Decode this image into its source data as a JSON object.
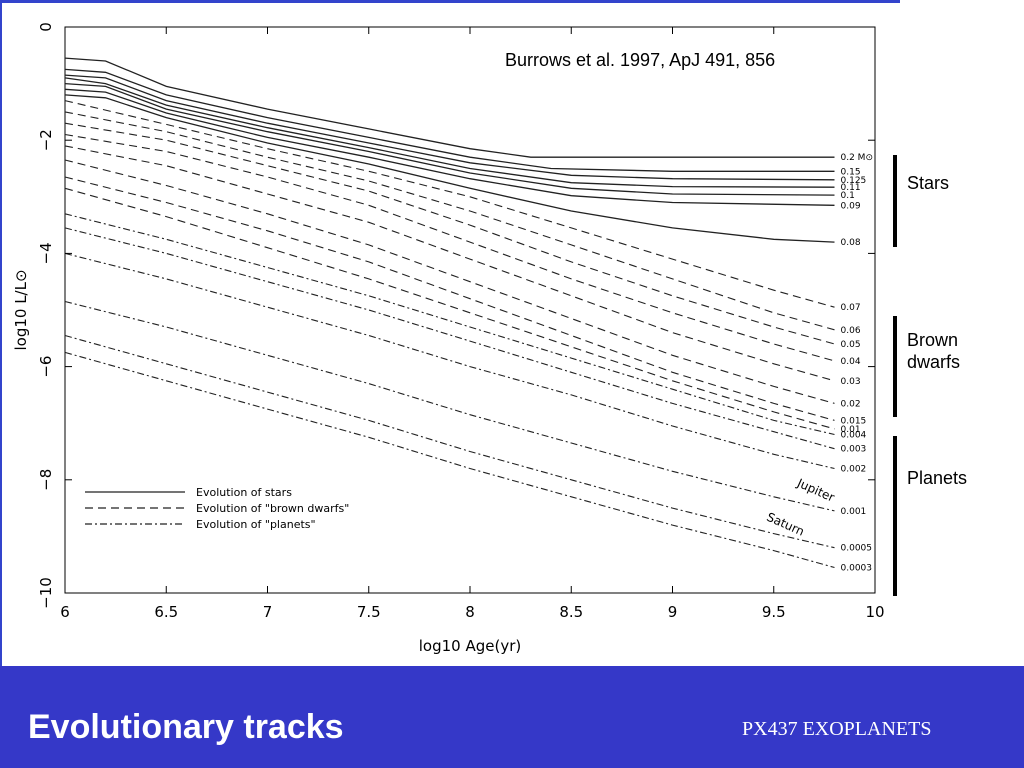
{
  "slide": {
    "title": "Evolutionary tracks",
    "course": "PX437 EXOPLANETS",
    "citation": "Burrows et al. 1997, ApJ 491, 856",
    "brackets": [
      {
        "label": "Stars"
      },
      {
        "label": "Brown dwarfs"
      },
      {
        "label": "Planets"
      }
    ],
    "colors": {
      "footer_bg": "#3538c8",
      "footer_text": "#ffffff",
      "accent_rule": "#3344cc"
    }
  },
  "chart_data": {
    "type": "line",
    "xlabel": "log10 Age(yr)",
    "ylabel": "log10 L/L⊙",
    "xlim": [
      6,
      10
    ],
    "ylim": [
      -10,
      0
    ],
    "xticks": [
      "6",
      "6.5",
      "7",
      "7.5",
      "8",
      "8.5",
      "9",
      "9.5",
      "10"
    ],
    "yticks": [
      "0",
      "−2",
      "−4",
      "−6",
      "−8",
      "−10"
    ],
    "legend": {
      "placement": "lower-left",
      "entries": [
        {
          "label": "Evolution of stars",
          "style": "solid"
        },
        {
          "label": "Evolution of \"brown dwarfs\"",
          "style": "dashed"
        },
        {
          "label": "Evolution of \"planets\"",
          "style": "dashdot"
        }
      ]
    },
    "mass_unit": "M⊙",
    "series": [
      {
        "name": "0.2 M⊙",
        "style": "solid",
        "x": [
          6,
          6.2,
          6.5,
          7,
          7.5,
          8,
          8.3,
          9,
          9.8
        ],
        "y": [
          -0.55,
          -0.6,
          -1.05,
          -1.45,
          -1.8,
          -2.15,
          -2.3,
          -2.3,
          -2.3
        ]
      },
      {
        "name": "0.15",
        "style": "solid",
        "x": [
          6,
          6.2,
          6.5,
          7,
          7.5,
          8,
          8.4,
          9,
          9.8
        ],
        "y": [
          -0.75,
          -0.8,
          -1.2,
          -1.6,
          -1.95,
          -2.3,
          -2.5,
          -2.55,
          -2.55
        ]
      },
      {
        "name": "0.125",
        "style": "solid",
        "x": [
          6,
          6.2,
          6.5,
          7,
          7.5,
          8,
          8.5,
          9,
          9.8
        ],
        "y": [
          -0.85,
          -0.9,
          -1.3,
          -1.7,
          -2.05,
          -2.4,
          -2.62,
          -2.68,
          -2.7
        ]
      },
      {
        "name": "0.11",
        "style": "solid",
        "x": [
          6,
          6.2,
          6.5,
          7,
          7.5,
          8,
          8.5,
          9,
          9.8
        ],
        "y": [
          -0.9,
          -1.0,
          -1.38,
          -1.78,
          -2.13,
          -2.5,
          -2.75,
          -2.82,
          -2.83
        ]
      },
      {
        "name": "0.1",
        "style": "solid",
        "x": [
          6,
          6.2,
          6.5,
          7,
          7.5,
          8,
          8.5,
          9,
          9.8
        ],
        "y": [
          -1.0,
          -1.05,
          -1.45,
          -1.85,
          -2.2,
          -2.58,
          -2.85,
          -2.95,
          -2.97
        ]
      },
      {
        "name": "0.09",
        "style": "solid",
        "x": [
          6,
          6.2,
          6.5,
          7,
          7.5,
          8,
          8.5,
          9,
          9.8
        ],
        "y": [
          -1.1,
          -1.15,
          -1.52,
          -1.95,
          -2.3,
          -2.68,
          -2.98,
          -3.1,
          -3.15
        ]
      },
      {
        "name": "0.08",
        "style": "solid",
        "x": [
          6,
          6.2,
          6.5,
          7,
          7.5,
          8,
          8.5,
          9,
          9.5,
          9.8
        ],
        "y": [
          -1.2,
          -1.25,
          -1.6,
          -2.05,
          -2.42,
          -2.85,
          -3.25,
          -3.55,
          -3.75,
          -3.8
        ]
      },
      {
        "name": "0.07",
        "style": "dashed",
        "x": [
          6,
          6.5,
          7,
          7.5,
          8,
          8.5,
          9,
          9.5,
          9.8
        ],
        "y": [
          -1.3,
          -1.72,
          -2.15,
          -2.55,
          -3.0,
          -3.55,
          -4.1,
          -4.65,
          -4.95
        ]
      },
      {
        "name": "0.06",
        "style": "dashed",
        "x": [
          6,
          6.5,
          7,
          7.5,
          8,
          8.5,
          9,
          9.5,
          9.8
        ],
        "y": [
          -1.5,
          -1.85,
          -2.3,
          -2.72,
          -3.25,
          -3.85,
          -4.45,
          -5.05,
          -5.35
        ]
      },
      {
        "name": "0.05",
        "style": "dashed",
        "x": [
          6,
          6.5,
          7,
          7.5,
          8,
          8.5,
          9,
          9.5,
          9.8
        ],
        "y": [
          -1.7,
          -2.0,
          -2.45,
          -2.9,
          -3.5,
          -4.15,
          -4.75,
          -5.3,
          -5.6
        ]
      },
      {
        "name": "0.04",
        "style": "dashed",
        "x": [
          6,
          6.5,
          7,
          7.5,
          8,
          8.5,
          9,
          9.5,
          9.8
        ],
        "y": [
          -1.9,
          -2.2,
          -2.65,
          -3.15,
          -3.8,
          -4.45,
          -5.05,
          -5.6,
          -5.9
        ]
      },
      {
        "name": "0.03",
        "style": "dashed",
        "x": [
          6,
          6.5,
          7,
          7.5,
          8,
          8.5,
          9,
          9.5,
          9.8
        ],
        "y": [
          -2.1,
          -2.45,
          -2.95,
          -3.45,
          -4.1,
          -4.75,
          -5.4,
          -5.95,
          -6.25
        ]
      },
      {
        "name": "0.02",
        "style": "dashed",
        "x": [
          6,
          6.5,
          7,
          7.5,
          8,
          8.5,
          9,
          9.5,
          9.8
        ],
        "y": [
          -2.35,
          -2.8,
          -3.3,
          -3.85,
          -4.5,
          -5.15,
          -5.8,
          -6.35,
          -6.65
        ]
      },
      {
        "name": "0.015",
        "style": "dashed",
        "x": [
          6,
          6.5,
          7,
          7.5,
          8,
          8.5,
          9,
          9.5,
          9.8
        ],
        "y": [
          -2.65,
          -3.1,
          -3.6,
          -4.15,
          -4.8,
          -5.45,
          -6.1,
          -6.65,
          -6.95
        ]
      },
      {
        "name": "0.01",
        "style": "dashed",
        "x": [
          6,
          6.5,
          7,
          7.5,
          8,
          8.5,
          9,
          9.5,
          9.8
        ],
        "y": [
          -2.85,
          -3.35,
          -3.9,
          -4.45,
          -5.05,
          -5.65,
          -6.25,
          -6.8,
          -7.1
        ]
      },
      {
        "name": "0.004",
        "style": "dashdot",
        "x": [
          6,
          6.5,
          7,
          7.5,
          8,
          8.5,
          9,
          9.5,
          9.8
        ],
        "y": [
          -3.3,
          -3.75,
          -4.25,
          -4.75,
          -5.3,
          -5.85,
          -6.4,
          -6.95,
          -7.2
        ]
      },
      {
        "name": "0.003",
        "style": "dashdot",
        "x": [
          6,
          6.5,
          7,
          7.5,
          8,
          8.5,
          9,
          9.5,
          9.8
        ],
        "y": [
          -3.55,
          -4.0,
          -4.5,
          -5.0,
          -5.55,
          -6.1,
          -6.65,
          -7.15,
          -7.45
        ]
      },
      {
        "name": "0.002",
        "style": "dashdot",
        "x": [
          6,
          6.5,
          7,
          7.5,
          8,
          8.5,
          9,
          9.5,
          9.8
        ],
        "y": [
          -4.0,
          -4.45,
          -4.95,
          -5.45,
          -6.0,
          -6.5,
          -7.05,
          -7.55,
          -7.8
        ]
      },
      {
        "name": "0.001",
        "style": "dashdot",
        "x": [
          6,
          6.5,
          7,
          7.5,
          8,
          8.5,
          9,
          9.5,
          9.8
        ],
        "y": [
          -4.85,
          -5.3,
          -5.8,
          -6.3,
          -6.85,
          -7.35,
          -7.85,
          -8.3,
          -8.55
        ]
      },
      {
        "name": "0.0005",
        "style": "dashdot",
        "x": [
          6,
          6.5,
          7,
          7.5,
          8,
          8.5,
          9,
          9.5,
          9.8
        ],
        "y": [
          -5.45,
          -5.95,
          -6.45,
          -6.95,
          -7.5,
          -8.0,
          -8.5,
          -8.95,
          -9.2
        ]
      },
      {
        "name": "0.0003",
        "style": "dashdot",
        "x": [
          6,
          6.5,
          7,
          7.5,
          8,
          8.5,
          9,
          9.5,
          9.8
        ],
        "y": [
          -5.75,
          -6.25,
          -6.75,
          -7.25,
          -7.8,
          -8.3,
          -8.8,
          -9.25,
          -9.55
        ]
      }
    ],
    "annotations": [
      {
        "text": "Jupiter",
        "x": 9.7,
        "y": -8.25
      },
      {
        "text": "Saturn",
        "x": 9.55,
        "y": -8.85
      }
    ]
  }
}
